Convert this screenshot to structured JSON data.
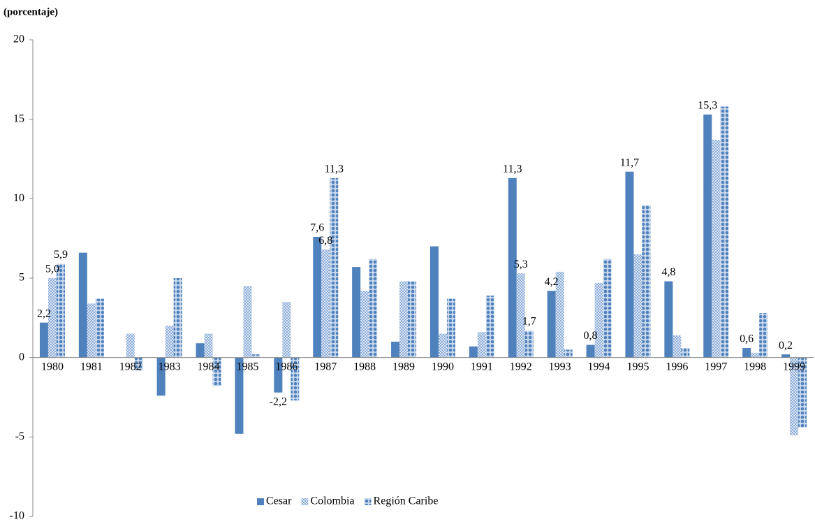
{
  "chart_data": {
    "type": "bar",
    "y_label": "(porcentaje)",
    "categories": [
      "1980",
      "1981",
      "1982",
      "1983",
      "1984",
      "1985",
      "1986",
      "1987",
      "1988",
      "1989",
      "1990",
      "1991",
      "1992",
      "1993",
      "1994",
      "1995",
      "1996",
      "1997",
      "1998",
      "1999"
    ],
    "series": [
      {
        "name": "Cesar",
        "color": "#4f81bd",
        "pattern": "solid",
        "values": [
          2.2,
          6.6,
          0,
          -2.4,
          0.9,
          -4.8,
          -2.2,
          7.6,
          5.7,
          1.0,
          7.0,
          0.7,
          11.3,
          4.2,
          0.8,
          11.7,
          4.8,
          15.3,
          0.6,
          0.2
        ],
        "value_labels": [
          "2,2",
          null,
          null,
          null,
          null,
          null,
          "-2,2",
          "7,6",
          null,
          null,
          null,
          null,
          "11,3",
          "4,2",
          "0,8",
          "11,7",
          "4,8",
          "15,3",
          "0,6",
          "0,2"
        ]
      },
      {
        "name": "Colombia",
        "color": "#8eaedb",
        "pattern": "checker",
        "values": [
          5.0,
          3.4,
          1.5,
          2.0,
          1.5,
          4.5,
          3.5,
          6.8,
          4.2,
          4.8,
          1.5,
          1.6,
          5.3,
          5.4,
          4.7,
          6.5,
          1.4,
          13.7,
          0.3,
          -4.9
        ],
        "value_labels": [
          "5,0",
          null,
          null,
          null,
          null,
          null,
          null,
          "6,8",
          null,
          null,
          null,
          null,
          "5,3",
          null,
          null,
          null,
          null,
          null,
          null,
          null
        ]
      },
      {
        "name": "Región Caribe",
        "color": "#4f81bd",
        "pattern": "dots",
        "values": [
          5.9,
          3.7,
          -0.8,
          5.0,
          -1.8,
          0.2,
          -2.7,
          11.3,
          6.2,
          4.8,
          3.7,
          3.9,
          1.7,
          0.5,
          6.2,
          9.6,
          0.6,
          15.8,
          2.8,
          -4.4
        ],
        "value_labels": [
          "5,9",
          null,
          null,
          null,
          null,
          null,
          null,
          "11,3",
          null,
          null,
          null,
          null,
          "1,7",
          null,
          null,
          null,
          null,
          null,
          null,
          null
        ]
      }
    ],
    "ylim": [
      -10,
      20
    ],
    "yticks": [
      -10,
      -5,
      0,
      5,
      10,
      15,
      20
    ],
    "legend": "bottom"
  }
}
